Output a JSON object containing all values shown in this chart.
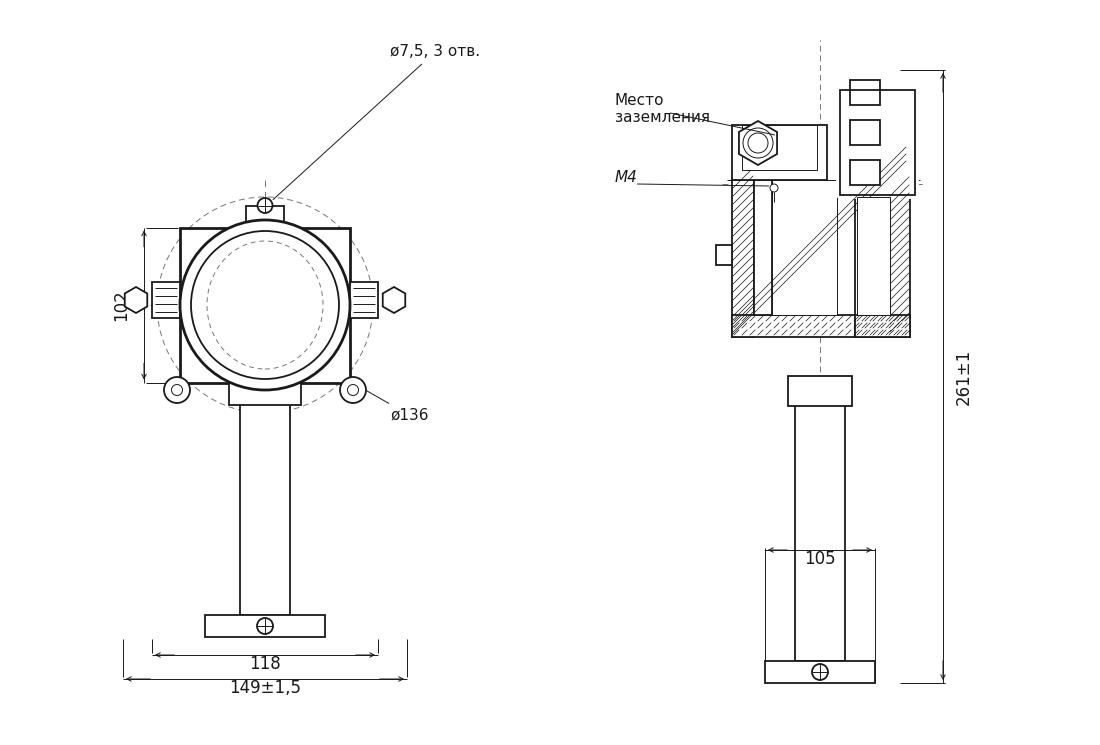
{
  "bg_color": "#ffffff",
  "lc": "#1a1a1a",
  "dc": "#777777",
  "figsize": [
    11.0,
    7.45
  ],
  "dpi": 100,
  "labels": {
    "d75": "ø7,5, 3 отв.",
    "d136": "ø136",
    "dim_102": "102",
    "dim_118": "118",
    "dim_149": "149±1,5",
    "mesto_1": "Место",
    "mesto_2": "заземления",
    "M4": "М4",
    "dim_261": "261±1",
    "dim_105": "105"
  }
}
